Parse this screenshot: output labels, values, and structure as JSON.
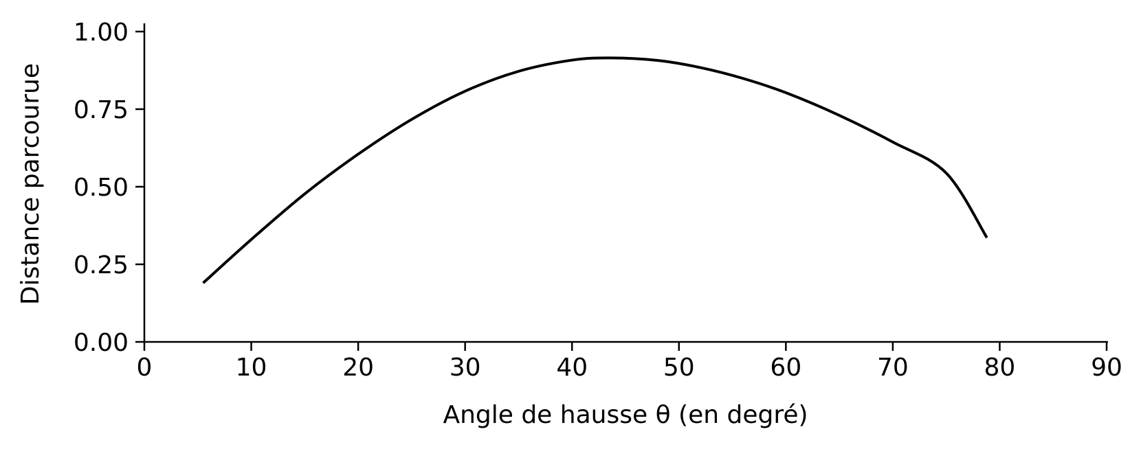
{
  "chart_data": {
    "type": "line",
    "title": "",
    "xlabel": "Angle de hausse θ (en degré)",
    "ylabel": "Distance parcourue",
    "xlim": [
      0,
      90
    ],
    "ylim": [
      0,
      1
    ],
    "grid": false,
    "legend": "none",
    "x_ticks": [
      "0",
      "10",
      "20",
      "30",
      "40",
      "50",
      "60",
      "70",
      "80",
      "90"
    ],
    "y_ticks": [
      "0.00",
      "0.25",
      "0.50",
      "0.75",
      "1.00"
    ],
    "x_tick_values": [
      0,
      10,
      20,
      30,
      40,
      50,
      60,
      70,
      80,
      90
    ],
    "y_tick_values": [
      0,
      0.25,
      0.5,
      0.75,
      1.0
    ],
    "series": [
      {
        "color": "#000000",
        "x": [
          5.5,
          10,
          15,
          20,
          25,
          30,
          35,
          40,
          43.6,
          48,
          52,
          56,
          60,
          65,
          70,
          75,
          78.8
        ],
        "y": [
          0.19,
          0.33,
          0.477,
          0.605,
          0.717,
          0.808,
          0.872,
          0.908,
          0.915,
          0.907,
          0.884,
          0.849,
          0.803,
          0.73,
          0.644,
          0.544,
          0.336
        ]
      }
    ]
  }
}
